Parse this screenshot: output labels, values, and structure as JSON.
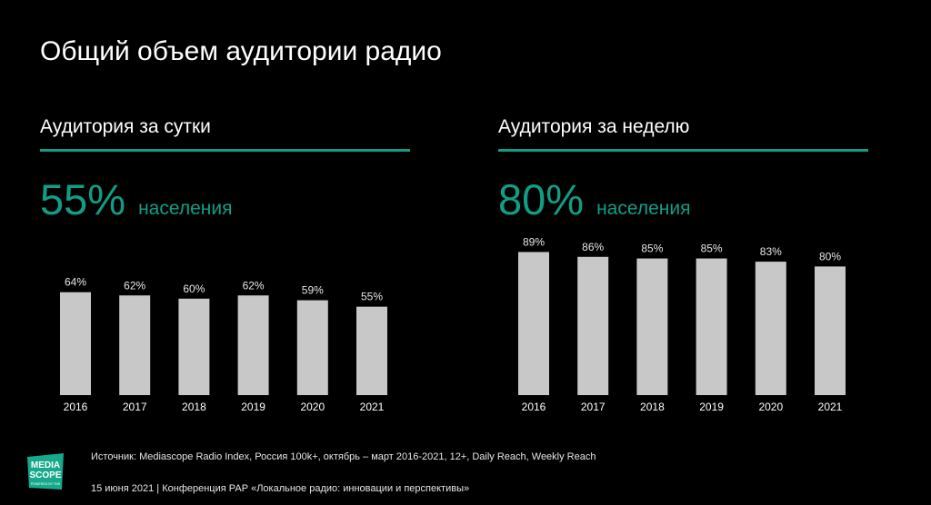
{
  "title": "Общий объем аудитории радио",
  "colors": {
    "accent": "#109e86",
    "bar": "#c8c8c8",
    "logo_bg": "#17a98b"
  },
  "chart_data": [
    {
      "type": "bar",
      "title": "Аудитория за сутки",
      "headline_value": "55%",
      "headline_unit": "населения",
      "categories": [
        "2016",
        "2017",
        "2018",
        "2019",
        "2020",
        "2021"
      ],
      "values": [
        64,
        62,
        60,
        62,
        59,
        55
      ],
      "value_labels": [
        "64%",
        "62%",
        "60%",
        "62%",
        "59%",
        "55%"
      ],
      "ylim": [
        0,
        100
      ],
      "grid": false,
      "legend": "none"
    },
    {
      "type": "bar",
      "title": "Аудитория за неделю",
      "headline_value": "80%",
      "headline_unit": "населения",
      "categories": [
        "2016",
        "2017",
        "2018",
        "2019",
        "2020",
        "2021"
      ],
      "values": [
        89,
        86,
        85,
        85,
        83,
        80
      ],
      "value_labels": [
        "89%",
        "86%",
        "85%",
        "85%",
        "83%",
        "80%"
      ],
      "ylim": [
        0,
        100
      ],
      "grid": false,
      "legend": "none"
    }
  ],
  "logo": {
    "line1": "MEDIA",
    "line2": "SCOPE",
    "tagline": "POWERED BY TNS",
    "icon": "mediascope-logo"
  },
  "footer": {
    "source": "Источник: Mediascope Radio Index, Россия 100k+, октябрь – март 2016-2021, 12+, Daily Reach, Weekly Reach",
    "date_event": "15 июня 2021 | Конференция РАР «Локальное радио: инновации и перспективы»"
  }
}
